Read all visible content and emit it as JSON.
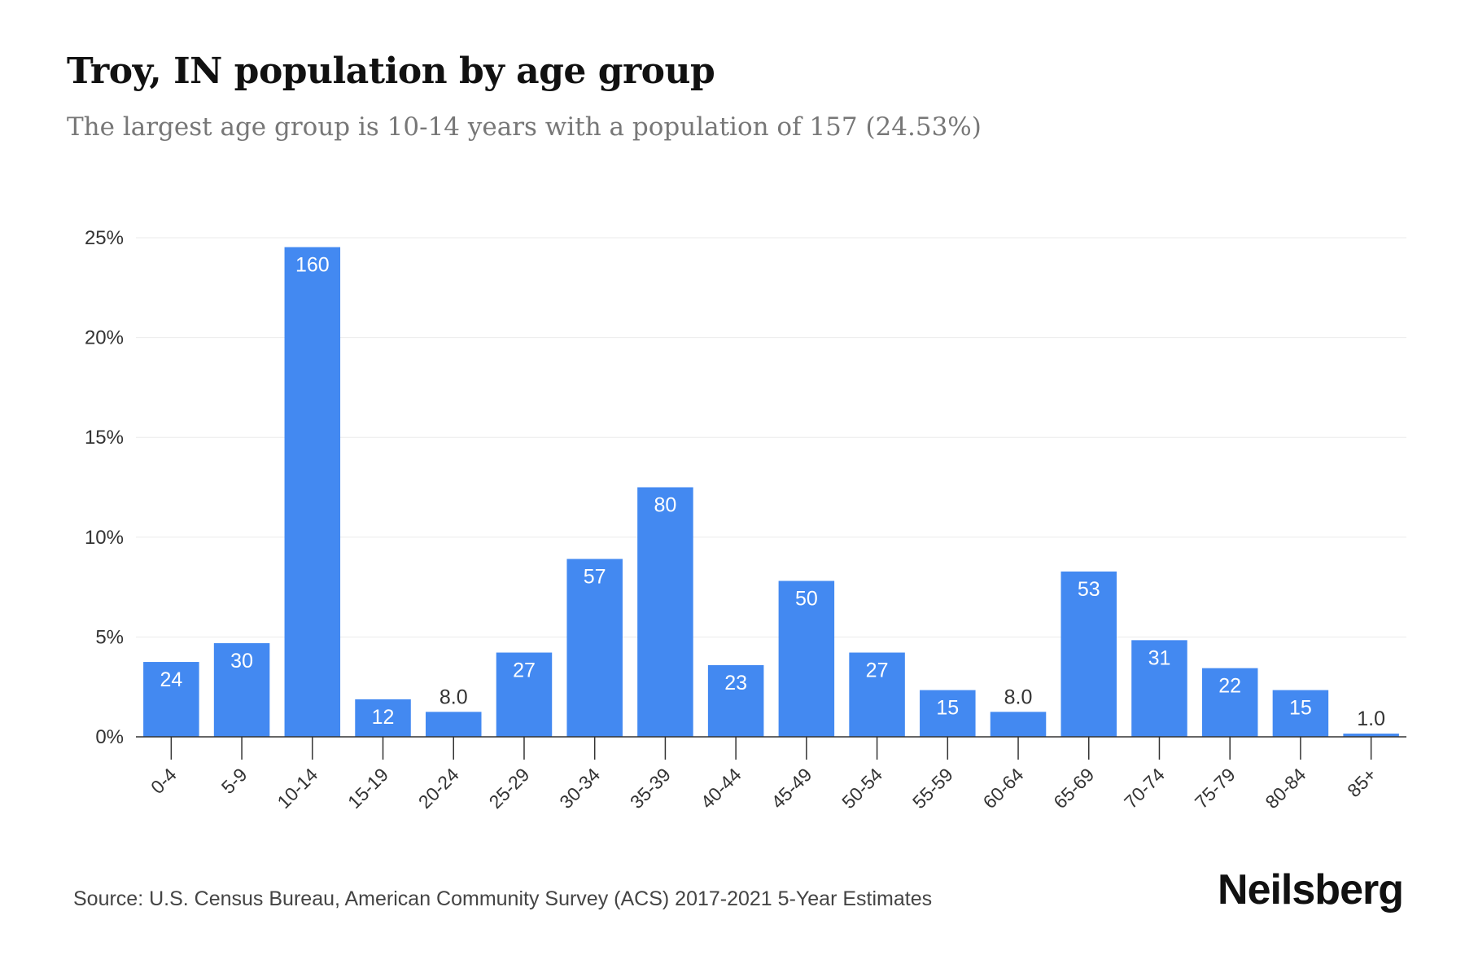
{
  "header": {
    "title": "Troy, IN population by age group",
    "subtitle": "The largest age group is 10-14 years with a population of 157 (24.53%)"
  },
  "footer": {
    "source": "Source: U.S. Census Bureau, American Community Survey (ACS) 2017-2021 5-Year Estimates",
    "brand": "Neilsberg"
  },
  "colors": {
    "bar": "#4389F1",
    "grid": "#EBEBEB",
    "axis": "#333333",
    "label_inside": "#FFFFFF",
    "label_outside": "#333333"
  },
  "chart_data": {
    "type": "bar",
    "categories": [
      "0-4",
      "5-9",
      "10-14",
      "15-19",
      "20-24",
      "25-29",
      "30-34",
      "35-39",
      "40-44",
      "45-49",
      "50-54",
      "55-59",
      "60-64",
      "65-69",
      "70-74",
      "75-79",
      "80-84",
      "85+"
    ],
    "values": [
      3.75,
      4.69,
      24.53,
      1.88,
      1.25,
      4.22,
      8.91,
      12.5,
      3.59,
      7.81,
      4.22,
      2.34,
      1.25,
      8.28,
      4.84,
      3.44,
      2.34,
      0.16
    ],
    "data_labels": [
      "24",
      "30",
      "160",
      "12",
      "8.0",
      "27",
      "57",
      "80",
      "23",
      "50",
      "27",
      "15",
      "8.0",
      "53",
      "31",
      "22",
      "15",
      "1.0"
    ],
    "yticks": [
      "0%",
      "5%",
      "10%",
      "15%",
      "20%",
      "25%"
    ],
    "ytick_values": [
      0,
      5,
      10,
      15,
      20,
      25
    ],
    "ylim": [
      0,
      25
    ],
    "grid": true,
    "legend": "none"
  }
}
